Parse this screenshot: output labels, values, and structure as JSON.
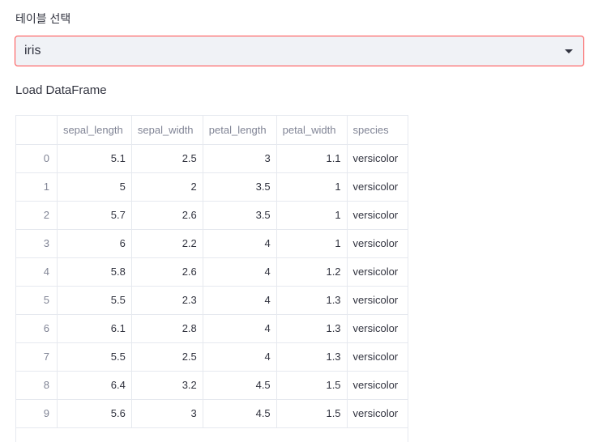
{
  "select": {
    "label": "테이블 선택",
    "value": "iris"
  },
  "section_title": "Load DataFrame",
  "table": {
    "columns": [
      "",
      "sepal_length",
      "sepal_width",
      "petal_length",
      "petal_width",
      "species"
    ],
    "rows": [
      [
        "0",
        "5.1",
        "2.5",
        "3",
        "1.1",
        "versicolor"
      ],
      [
        "1",
        "5",
        "2",
        "3.5",
        "1",
        "versicolor"
      ],
      [
        "2",
        "5.7",
        "2.6",
        "3.5",
        "1",
        "versicolor"
      ],
      [
        "3",
        "6",
        "2.2",
        "4",
        "1",
        "versicolor"
      ],
      [
        "4",
        "5.8",
        "2.6",
        "4",
        "1.2",
        "versicolor"
      ],
      [
        "5",
        "5.5",
        "2.3",
        "4",
        "1.3",
        "versicolor"
      ],
      [
        "6",
        "6.1",
        "2.8",
        "4",
        "1.3",
        "versicolor"
      ],
      [
        "7",
        "5.5",
        "2.5",
        "4",
        "1.3",
        "versicolor"
      ],
      [
        "8",
        "6.4",
        "3.2",
        "4.5",
        "1.5",
        "versicolor"
      ],
      [
        "9",
        "5.6",
        "3",
        "4.5",
        "1.5",
        "versicolor"
      ]
    ]
  },
  "colors": {
    "accent_border": "#ff4b4b",
    "select_bg": "#f0f2f6",
    "text": "#31333f",
    "muted": "#808495",
    "grid": "#e6e9ef"
  },
  "icons": {
    "dropdown": "caret-down-icon"
  }
}
